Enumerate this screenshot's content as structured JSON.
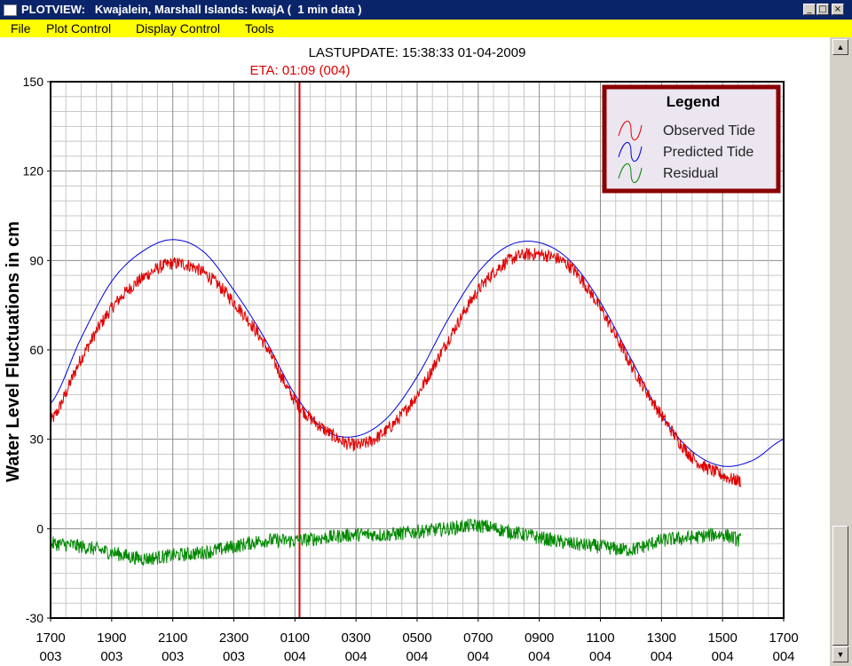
{
  "window": {
    "title": "PLOTVIEW:   Kwajalein, Marshall Islands: kwajA (  1 min data )",
    "minimize_glyph": "_",
    "maximize_glyph": "□",
    "close_glyph": "×"
  },
  "menu": {
    "items": [
      "File",
      "Plot Control",
      "Display Control",
      "Tools"
    ]
  },
  "scrollbar": {
    "up_glyph": "▲",
    "down_glyph": "▼"
  },
  "chart_data": {
    "type": "line",
    "header": "LASTUPDATE: 15:38:33  01-04-2009",
    "eta_label": "ETA: 01:09 (004)",
    "eta_x_hours": 8.15,
    "ylabel": "Water Level Fluctuations in cm",
    "ylim": [
      -30,
      150
    ],
    "y_ticks": [
      150,
      120,
      90,
      60,
      30,
      0,
      -30
    ],
    "xlim_hours": [
      0,
      24
    ],
    "x_ticks": [
      {
        "time": "1700",
        "day": "003"
      },
      {
        "time": "1900",
        "day": "003"
      },
      {
        "time": "2100",
        "day": "003"
      },
      {
        "time": "2300",
        "day": "003"
      },
      {
        "time": "0100",
        "day": "004"
      },
      {
        "time": "0300",
        "day": "004"
      },
      {
        "time": "0500",
        "day": "004"
      },
      {
        "time": "0700",
        "day": "004"
      },
      {
        "time": "0900",
        "day": "004"
      },
      {
        "time": "1100",
        "day": "004"
      },
      {
        "time": "1300",
        "day": "004"
      },
      {
        "time": "1500",
        "day": "004"
      },
      {
        "time": "1700",
        "day": "004"
      }
    ],
    "grid": true,
    "legend": {
      "title": "Legend",
      "position": "top-right",
      "entries": [
        "Observed Tide",
        "Predicted Tide",
        "Residual"
      ]
    },
    "colors": {
      "observed": "#e00000",
      "predicted": "#0000dd",
      "residual": "#008800",
      "eta_line": "#dd0000",
      "legend_border": "#8b0000",
      "legend_bg": "#ece6f0",
      "grid": "#a8a8a8"
    },
    "series": [
      {
        "name": "Predicted Tide",
        "x_hours": [
          0,
          1,
          2,
          3,
          4,
          5,
          6,
          7,
          8,
          9,
          10,
          11,
          12,
          13,
          14,
          15,
          16,
          17,
          18,
          19,
          20,
          21,
          22,
          23,
          24
        ],
        "values": [
          42,
          64,
          83,
          93,
          97,
          93,
          80,
          64,
          45,
          33,
          31,
          37,
          51,
          70,
          86,
          95,
          96,
          90,
          76,
          57,
          38,
          26,
          21,
          23,
          30
        ]
      },
      {
        "name": "Observed Tide",
        "x_hours": [
          0,
          1,
          2,
          3,
          4,
          5,
          6,
          7,
          8,
          9,
          10,
          11,
          12,
          13,
          14,
          15,
          16,
          17,
          18,
          19,
          20,
          21,
          22,
          22.6
        ],
        "values": [
          36,
          57,
          74,
          84,
          89,
          86,
          76,
          62,
          43,
          33,
          28,
          33,
          45,
          63,
          80,
          90,
          92,
          88,
          74,
          55,
          38,
          24,
          18,
          16
        ]
      },
      {
        "name": "Residual",
        "x_hours": [
          0,
          1,
          2,
          3,
          4,
          5,
          6,
          7,
          8,
          9,
          10,
          11,
          12,
          13,
          14,
          15,
          16,
          17,
          18,
          19,
          20,
          21,
          22,
          22.6
        ],
        "values": [
          -5,
          -6,
          -8,
          -10,
          -9,
          -8,
          -6,
          -4,
          -4,
          -3,
          -2,
          -2,
          -1,
          0,
          1,
          -1,
          -3,
          -5,
          -6,
          -7,
          -4,
          -3,
          -2,
          -4
        ]
      }
    ]
  }
}
